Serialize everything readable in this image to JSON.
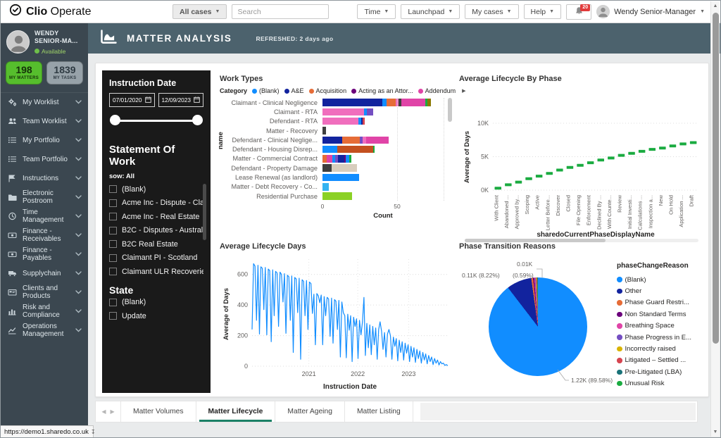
{
  "topbar": {
    "brand_bold": "Clio",
    "brand_regular": "Operate",
    "all_cases_label": "All cases",
    "search_placeholder": "Search",
    "menu_buttons": [
      "Time",
      "Launchpad",
      "My cases",
      "Help"
    ],
    "notification_count": "20",
    "user_name": "Wendy Senior-Manager"
  },
  "sidebar": {
    "user": {
      "name": "WENDY SENIOR-MA...",
      "status": "Available"
    },
    "stats": [
      {
        "value": "198",
        "label": "MY MATTERS",
        "color": "#56BE2D"
      },
      {
        "value": "1839",
        "label": "MY TASKS",
        "color": "#97A2A9"
      }
    ],
    "items": [
      {
        "label": "My Worklist",
        "icon": "gears-icon"
      },
      {
        "label": "Team Worklist",
        "icon": "team-icon"
      },
      {
        "label": "My Portfolio",
        "icon": "list-icon"
      },
      {
        "label": "Team Portfolio",
        "icon": "list-icon"
      },
      {
        "label": "Instructions",
        "icon": "instructions-icon"
      },
      {
        "label": "Electronic Postroom",
        "icon": "folder-icon"
      },
      {
        "label": "Time Management",
        "icon": "clock-icon"
      },
      {
        "label": "Finance - Receivables",
        "icon": "money-icon"
      },
      {
        "label": "Finance - Payables",
        "icon": "money-icon"
      },
      {
        "label": "Supplychain",
        "icon": "truck-icon"
      },
      {
        "label": "Clients and Products",
        "icon": "card-icon"
      },
      {
        "label": "Risk and Compliance",
        "icon": "bar-chart-icon"
      },
      {
        "label": "Operations Management",
        "icon": "line-chart-icon"
      }
    ]
  },
  "header": {
    "title": "MATTER ANALYSIS",
    "refreshed": "REFRESHED: 2 days ago"
  },
  "filters": {
    "instruction_date": {
      "label": "Instruction Date",
      "from": "07/01/2020",
      "to": "12/09/2023"
    },
    "statement_of_work": {
      "label": "Statement Of Work",
      "selection": "sow: All",
      "options": [
        "(Blank)",
        "Acme Inc - Dispute - Clai...",
        "Acme Inc - Real Estate",
        "B2C - Disputes - Australia",
        "B2C Real Estate",
        "Claimant PI - Scotland",
        "Claimant ULR Recoveries"
      ]
    },
    "state": {
      "label": "State",
      "options": [
        "(Blank)",
        "Update"
      ]
    }
  },
  "tabs": {
    "items": [
      {
        "label": "Matter Volumes",
        "active": false
      },
      {
        "label": "Matter Lifecycle",
        "active": true
      },
      {
        "label": "Matter Ageing",
        "active": false
      },
      {
        "label": "Matter Listing",
        "active": false
      }
    ]
  },
  "status_bar": {
    "url": "https://demo1.sharedo.co.uk"
  },
  "chart_data": [
    {
      "type": "bar",
      "orientation": "horizontal",
      "stacked": true,
      "title": "Work Types",
      "legend_title": "Category",
      "legend": [
        {
          "label": "(Blank)",
          "color": "#118DFF"
        },
        {
          "label": "A&E",
          "color": "#12239E"
        },
        {
          "label": "Acquisition",
          "color": "#E66C37"
        },
        {
          "label": "Acting as an Attor...",
          "color": "#6B007B"
        },
        {
          "label": "Addendum",
          "color": "#E044A7"
        }
      ],
      "xlabel": "Count",
      "ylabel": "name",
      "x_ticks": [
        0,
        50
      ],
      "xlim": [
        0,
        85
      ],
      "bars": [
        {
          "name": "Claimant - Clinical Negligence",
          "segments": [
            [
              "#12239E",
              40
            ],
            [
              "#118DFF",
              3
            ],
            [
              "#E66C37",
              6
            ],
            [
              "#F06EBD",
              2
            ],
            [
              "#3F3F3F",
              2
            ],
            [
              "#E044A7",
              16
            ],
            [
              "#1AAB40",
              1.5
            ],
            [
              "#8A7800",
              2
            ]
          ]
        },
        {
          "name": "Claimant - RTA",
          "segments": [
            [
              "#F06EBD",
              28
            ],
            [
              "#118DFF",
              1.5
            ],
            [
              "#744EC2",
              4.5
            ]
          ]
        },
        {
          "name": "Defendant - RTA",
          "segments": [
            [
              "#F06EBD",
              24
            ],
            [
              "#118DFF",
              2
            ],
            [
              "#12239E",
              1
            ],
            [
              "#D64550",
              1.5
            ]
          ]
        },
        {
          "name": "Matter - Recovery",
          "segments": [
            [
              "#3F3F3F",
              2.5
            ]
          ]
        },
        {
          "name": "Defendant - Clinical Neglige...",
          "segments": [
            [
              "#12239E",
              13
            ],
            [
              "#E66C37",
              12
            ],
            [
              "#744EC2",
              2
            ],
            [
              "#F06EBD",
              2.5
            ],
            [
              "#E044A7",
              15
            ]
          ]
        },
        {
          "name": "Defendant - Housing Disrep...",
          "segments": [
            [
              "#118DFF",
              10
            ],
            [
              "#C4501F",
              24
            ],
            [
              "#1AAB40",
              1
            ]
          ]
        },
        {
          "name": "Matter - Commercial Contract",
          "segments": [
            [
              "#E66C37",
              3
            ],
            [
              "#E044A7",
              3.5
            ],
            [
              "#118DFF",
              2
            ],
            [
              "#744EC2",
              2
            ],
            [
              "#12239E",
              4
            ],
            [
              "#6B007B",
              1
            ],
            [
              "#118DFF",
              2.5
            ],
            [
              "#1AAB40",
              1.5
            ]
          ]
        },
        {
          "name": "Defendant - Property Damage",
          "segments": [
            [
              "#3F3F3F",
              6
            ],
            [
              "#D8CDBD",
              17
            ]
          ]
        },
        {
          "name": "Lease Renewal (as landlord)",
          "segments": [
            [
              "#118DFF",
              24.5
            ]
          ]
        },
        {
          "name": "Matter - Debt Recovery - Co...",
          "segments": [
            [
              "#34B3F1",
              4
            ]
          ]
        },
        {
          "name": "Residential Purchase",
          "segments": [
            [
              "#8BD125",
              20
            ]
          ]
        }
      ]
    },
    {
      "type": "bar",
      "title": "Average Lifecycle By Phase",
      "ylabel": "Average of Days",
      "xlabel": "sharedoCurrentPhaseDisplayName",
      "y_ticks": [
        "0K",
        "5K",
        "10K"
      ],
      "ylim": [
        0,
        10
      ],
      "color": "#1AAB40",
      "categories": [
        "With Client",
        "Abandoned ...",
        "Approved by...",
        "Scoping",
        "Active",
        "Letter Before...",
        "Discover",
        "Closed",
        "File Opening",
        "Enforcement",
        "Declined By ...",
        "With Counte...",
        "Review",
        "Initial Investi...",
        "Calculations ...",
        "Inspection a...",
        "New",
        "On Hold",
        "Application ...",
        "Draft"
      ],
      "values": [
        0.3,
        0.8,
        1.2,
        1.7,
        2.1,
        2.5,
        3.0,
        3.4,
        3.7,
        4.1,
        4.5,
        4.8,
        5.2,
        5.5,
        5.8,
        6.1,
        6.3,
        6.6,
        6.9,
        7.1
      ]
    },
    {
      "type": "line",
      "title": "Average Lifecycle Days",
      "ylabel": "Average of Days",
      "xlabel": "Instruction Date",
      "y_ticks": [
        0,
        200,
        400,
        600
      ],
      "ylim": [
        0,
        700
      ],
      "x_ticks": [
        {
          "label": "2021",
          "pos": 0.29
        },
        {
          "label": "2022",
          "pos": 0.54
        },
        {
          "label": "2023",
          "pos": 0.8
        }
      ],
      "color": "#118DFF",
      "values": [
        240,
        670,
        655,
        300,
        660,
        210,
        650,
        640,
        370,
        645,
        205,
        635,
        625,
        160,
        630,
        330,
        620,
        610,
        260,
        615,
        600,
        420,
        605,
        215,
        595,
        585,
        300,
        590,
        90,
        580,
        570,
        350,
        575,
        45,
        565,
        555,
        330,
        560,
        240,
        550,
        540,
        345,
        470,
        140,
        475,
        460,
        415,
        465,
        140,
        455,
        330,
        450,
        440,
        195,
        445,
        150,
        435,
        425,
        240,
        430,
        60,
        420,
        350,
        330,
        55,
        340,
        235,
        330,
        30,
        320,
        260,
        310,
        50,
        300,
        205,
        290,
        450,
        70,
        280,
        120,
        270,
        75,
        260,
        140,
        250,
        45,
        240,
        290,
        230,
        110,
        220,
        60,
        210,
        240,
        200,
        45,
        190,
        130,
        180,
        35,
        170,
        90,
        160,
        40,
        150,
        85,
        140,
        30,
        130,
        60,
        120,
        25,
        110,
        50,
        100,
        20,
        90,
        40,
        80,
        15,
        70,
        30,
        60,
        10,
        50,
        20,
        40,
        8,
        30,
        15,
        20,
        5,
        10,
        3
      ]
    },
    {
      "type": "pie",
      "title": "Phase Transition Reasons",
      "legend_title": "phaseChangeReason",
      "slices": [
        {
          "label": "(Blank)",
          "color": "#118DFF",
          "pct": 89.58,
          "value": "1.22K"
        },
        {
          "label": "Other",
          "color": "#12239E",
          "pct": 8.22,
          "value": "0.11K"
        },
        {
          "label": "Phase Guard Restri...",
          "color": "#E66C37",
          "pct": 0.59,
          "value": "0.01K"
        },
        {
          "label": "Non Standard Terms",
          "color": "#6B007B",
          "pct": 0.4
        },
        {
          "label": "Breathing Space",
          "color": "#E044A7",
          "pct": 0.3
        },
        {
          "label": "Phase Progress in E...",
          "color": "#744EC2",
          "pct": 0.25
        },
        {
          "label": "Incorrectly raised",
          "color": "#D9B300",
          "pct": 0.2
        },
        {
          "label": "Litigated – Settled ...",
          "color": "#D64550",
          "pct": 0.17
        },
        {
          "label": "Pre-Litigated (LBA)",
          "color": "#197278",
          "pct": 0.15
        },
        {
          "label": "Unusual Risk",
          "color": "#1AAB40",
          "pct": 0.14
        }
      ],
      "callouts": {
        "top": "0.01K",
        "left": "0.11K (8.22%)",
        "mid": "(0.59%)",
        "bottom": "1.22K (89.58%)"
      }
    }
  ]
}
